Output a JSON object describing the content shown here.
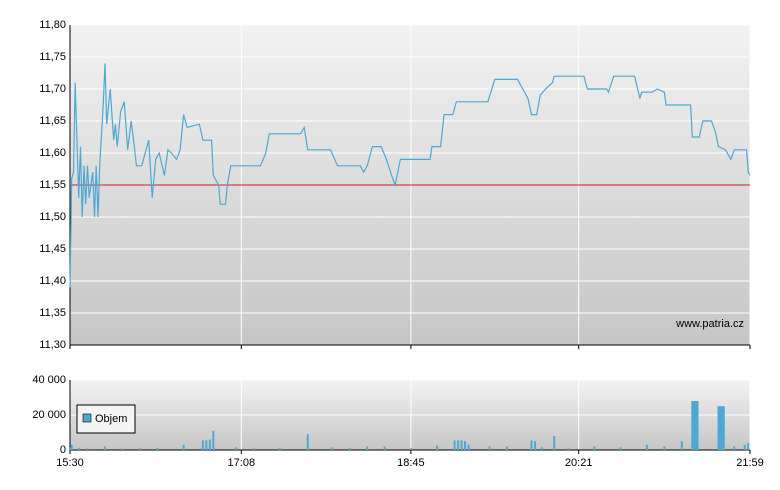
{
  "chart_data": [
    {
      "type": "line",
      "color": "#4ea8d2",
      "xlim": [
        "15:30",
        "21:59"
      ],
      "xticks": [
        "15:30",
        "17:08",
        "18:45",
        "20:21",
        "21:59"
      ],
      "ylim": [
        11.3,
        11.8
      ],
      "yticks": [
        {
          "value": 11.3,
          "label": "11,30"
        },
        {
          "value": 11.35,
          "label": "11,35"
        },
        {
          "value": 11.4,
          "label": "11,40"
        },
        {
          "value": 11.45,
          "label": "11,45"
        },
        {
          "value": 11.5,
          "label": "11,50"
        },
        {
          "value": 11.55,
          "label": "11,55"
        },
        {
          "value": 11.6,
          "label": "11,60"
        },
        {
          "value": 11.65,
          "label": "11,65"
        },
        {
          "value": 11.7,
          "label": "11,70"
        },
        {
          "value": 11.75,
          "label": "11,75"
        },
        {
          "value": 11.8,
          "label": "11,80"
        }
      ],
      "grid": true,
      "reference_line": {
        "value": 11.55,
        "color": "#cc2222"
      },
      "annotation": "www.patria.cz",
      "x": [
        "15:30",
        "15:31",
        "15:32",
        "15:33",
        "15:35",
        "15:36",
        "15:37",
        "15:38",
        "15:39",
        "15:40",
        "15:41",
        "15:43",
        "15:44",
        "15:45",
        "15:46",
        "15:47",
        "15:49",
        "15:50",
        "15:51",
        "15:53",
        "15:55",
        "15:56",
        "15:57",
        "15:59",
        "16:01",
        "16:03",
        "16:05",
        "16:07",
        "16:08",
        "16:11",
        "16:15",
        "16:17",
        "16:19",
        "16:21",
        "16:24",
        "16:26",
        "16:28",
        "16:31",
        "16:33",
        "16:35",
        "16:37",
        "16:44",
        "16:46",
        "16:51",
        "16:52",
        "16:55",
        "16:56",
        "16:59",
        "17:00",
        "17:02",
        "17:19",
        "17:22",
        "17:24",
        "17:42",
        "17:44",
        "17:46",
        "17:59",
        "18:03",
        "18:16",
        "18:18",
        "18:20",
        "18:23",
        "18:28",
        "18:31",
        "18:34",
        "18:36",
        "18:39",
        "18:56",
        "18:57",
        "19:02",
        "19:04",
        "19:09",
        "19:11",
        "19:29",
        "19:33",
        "19:46",
        "19:49",
        "19:52",
        "19:54",
        "19:57",
        "19:59",
        "20:02",
        "20:06",
        "20:07",
        "20:24",
        "20:26",
        "20:37",
        "20:38",
        "20:41",
        "20:53",
        "20:56",
        "20:57",
        "21:03",
        "21:06",
        "21:10",
        "21:11",
        "21:25",
        "21:26",
        "21:30",
        "21:32",
        "21:37",
        "21:39",
        "21:41",
        "21:45",
        "21:48",
        "21:50",
        "21:57",
        "21:58",
        "21:59"
      ],
      "values": [
        11.39,
        11.56,
        11.57,
        11.71,
        11.53,
        11.61,
        11.5,
        11.58,
        11.52,
        11.58,
        11.53,
        11.57,
        11.5,
        11.58,
        11.5,
        11.58,
        11.675,
        11.74,
        11.645,
        11.7,
        11.62,
        11.645,
        11.61,
        11.665,
        11.68,
        11.605,
        11.65,
        11.605,
        11.58,
        11.58,
        11.62,
        11.53,
        11.59,
        11.6,
        11.565,
        11.605,
        11.6,
        11.59,
        11.605,
        11.66,
        11.64,
        11.645,
        11.62,
        11.62,
        11.565,
        11.55,
        11.52,
        11.52,
        11.55,
        11.58,
        11.58,
        11.6,
        11.63,
        11.63,
        11.64,
        11.605,
        11.605,
        11.58,
        11.58,
        11.57,
        11.58,
        11.61,
        11.61,
        11.59,
        11.565,
        11.55,
        11.59,
        11.59,
        11.61,
        11.61,
        11.66,
        11.66,
        11.68,
        11.68,
        11.715,
        11.715,
        11.7,
        11.685,
        11.66,
        11.66,
        11.69,
        11.7,
        11.71,
        11.72,
        11.72,
        11.7,
        11.7,
        11.695,
        11.72,
        11.72,
        11.685,
        11.695,
        11.695,
        11.7,
        11.695,
        11.675,
        11.675,
        11.625,
        11.625,
        11.65,
        11.65,
        11.635,
        11.61,
        11.605,
        11.59,
        11.605,
        11.605,
        11.57,
        11.565
      ]
    },
    {
      "type": "bar",
      "xlim": [
        "15:30",
        "21:59"
      ],
      "xticks": [
        "15:30",
        "17:08",
        "18:45",
        "20:21",
        "21:59"
      ],
      "ylim": [
        0,
        40000
      ],
      "yticks": [
        0,
        {
          "value": 20000,
          "label": "20 000"
        },
        {
          "value": 40000,
          "label": "40 000"
        }
      ],
      "grid": true,
      "legend": "bottom-left",
      "x": [
        "15:30",
        "15:31",
        "15:35",
        "15:40",
        "15:50",
        "16:00",
        "16:10",
        "16:20",
        "16:35",
        "16:46",
        "16:48",
        "16:50",
        "16:52",
        "17:05",
        "17:15",
        "17:30",
        "17:46",
        "18:00",
        "18:10",
        "18:20",
        "18:30",
        "18:45",
        "19:00",
        "19:10",
        "19:12",
        "19:14",
        "19:16",
        "19:18",
        "19:30",
        "19:40",
        "19:54",
        "19:56",
        "20:00",
        "20:07",
        "20:15",
        "20:30",
        "20:45",
        "21:00",
        "21:10",
        "21:20",
        "21:26",
        "21:27",
        "21:28",
        "21:29",
        "21:41",
        "21:42",
        "21:43",
        "21:44",
        "21:50",
        "21:56",
        "21:58"
      ],
      "series": [
        {
          "name": "Objem",
          "color": "#4ea8d2",
          "values": [
            1500,
            3000,
            1200,
            1000,
            2000,
            800,
            1000,
            1200,
            3000,
            5500,
            5500,
            6000,
            11000,
            1500,
            1000,
            1200,
            9000,
            1500,
            1200,
            2000,
            2000,
            1000,
            2500,
            5500,
            5500,
            5500,
            5000,
            3000,
            2000,
            2000,
            5500,
            5000,
            1500,
            8000,
            1000,
            2000,
            1500,
            3000,
            2000,
            5000,
            28000,
            28000,
            28000,
            28000,
            25000,
            25000,
            25000,
            25000,
            2000,
            3000,
            4000
          ]
        }
      ]
    }
  ]
}
